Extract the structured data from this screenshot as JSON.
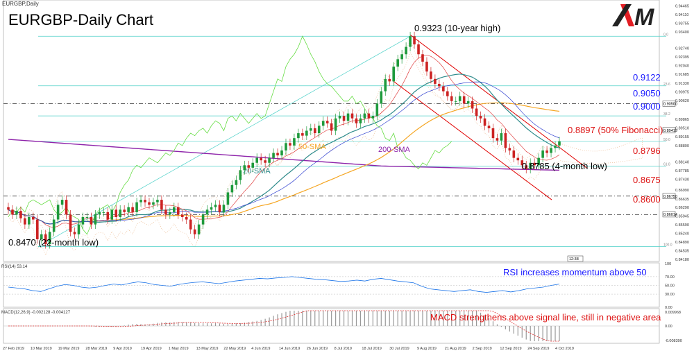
{
  "symbol_label": "EURGBP,Daily",
  "title": "EURGBP-Daily Chart",
  "logo_text": "XM",
  "colors": {
    "sma20": "#2e8b8b",
    "sma50": "#f5a623",
    "sma200": "#8e24aa",
    "bull": "#1e9a3c",
    "bear": "#cc2222",
    "channel": "#e00000",
    "fib": "#4dd0c8",
    "chikou": "#66dd44",
    "tenkan": "#e04040",
    "kijun": "#3040d0",
    "annotation_blue": "#1a1aff",
    "annotation_red": "#dd1111"
  },
  "chart_data": {
    "type": "candlestick",
    "instrument": "EURGBP",
    "timeframe": "Daily",
    "xlabels": [
      "27 Feb 2019",
      "10 Mar 2019",
      "19 Mar 2019",
      "28 Mar 2019",
      "9 Apr 2019",
      "19 Apr 2019",
      "1 May 2019",
      "13 May 2019",
      "22 May 2019",
      "4 Jun 2019",
      "14 Jun 2019",
      "26 Jun 2019",
      "8 Jul 2019",
      "18 Jul 2019",
      "30 Jul 2019",
      "9 Aug 2019",
      "21 Aug 2019",
      "2 Sep 2019",
      "12 Sep 2019",
      "24 Sep 2019",
      "4 Oct 2019"
    ],
    "ylim": [
      0.841,
      0.947
    ],
    "price_axis_labels": [
      "0.94465",
      "0.94110",
      "0.93755",
      "0.93400",
      "0.92740",
      "0.92395",
      "0.92040",
      "0.91685",
      "0.91330",
      "0.90975",
      "0.90620",
      "0.89865",
      "0.89510",
      "0.89155",
      "0.88800",
      "0.88140",
      "0.87785",
      "0.87430",
      "0.86990",
      "0.86635",
      "0.86290",
      "0.85945",
      "0.85590",
      "0.85240",
      "0.84890",
      "0.84535",
      "0.84180"
    ],
    "price_axis_flags": [
      "0.90500",
      "0.89419",
      "0.86750",
      "0.86014"
    ],
    "closes": [
      0.862,
      0.86,
      0.8615,
      0.8585,
      0.856,
      0.859,
      0.858,
      0.85,
      0.852,
      0.848,
      0.853,
      0.858,
      0.864,
      0.866,
      0.86,
      0.853,
      0.852,
      0.856,
      0.859,
      0.859,
      0.856,
      0.86,
      0.861,
      0.861,
      0.858,
      0.862,
      0.859,
      0.862,
      0.861,
      0.863,
      0.861,
      0.865,
      0.866,
      0.865,
      0.864,
      0.865,
      0.866,
      0.862,
      0.86,
      0.861,
      0.863,
      0.86,
      0.859,
      0.858,
      0.854,
      0.852,
      0.856,
      0.86,
      0.862,
      0.863,
      0.864,
      0.861,
      0.864,
      0.869,
      0.872,
      0.874,
      0.878,
      0.88,
      0.879,
      0.881,
      0.883,
      0.882,
      0.881,
      0.883,
      0.885,
      0.884,
      0.886,
      0.889,
      0.888,
      0.891,
      0.893,
      0.892,
      0.894,
      0.895,
      0.893,
      0.896,
      0.898,
      0.897,
      0.894,
      0.899,
      0.9,
      0.898,
      0.901,
      0.899,
      0.897,
      0.899,
      0.901,
      0.899,
      0.9,
      0.905,
      0.91,
      0.915,
      0.914,
      0.92,
      0.923,
      0.925,
      0.928,
      0.9323,
      0.929,
      0.925,
      0.922,
      0.918,
      0.915,
      0.913,
      0.912,
      0.91,
      0.908,
      0.906,
      0.906,
      0.908,
      0.905,
      0.906,
      0.903,
      0.9,
      0.899,
      0.896,
      0.895,
      0.891,
      0.89,
      0.893,
      0.887,
      0.886,
      0.883,
      0.882,
      0.88,
      0.8785,
      0.881,
      0.88,
      0.883,
      0.886,
      0.885,
      0.887,
      0.888,
      0.8897
    ],
    "sma_20_last": 0.885,
    "sma_50_last": 0.9,
    "sma_200_last": 0.8815,
    "fibonacci_levels": {
      "0.0": 0.9323,
      "23.6": 0.9122,
      "38.2": 0.9,
      "50.0": 0.8897,
      "61.8": 0.8796,
      "100.0": 0.847
    },
    "horizontal_levels": [
      0.905,
      0.8675,
      0.86
    ],
    "sma_labels": [
      "20-SMA",
      "50-SMA",
      "200-SMA"
    ],
    "fib_small_labels": [
      "0.0",
      "23.6",
      "38.2",
      "50.0",
      "61.8",
      "100.0"
    ],
    "annotations": [
      {
        "text": "0.9323 (10-year high)",
        "value": 0.9323
      },
      {
        "text": "0.9122",
        "value": 0.9122
      },
      {
        "text": "0.9050",
        "value": 0.905
      },
      {
        "text": "0.9000",
        "value": 0.9
      },
      {
        "text": "0.8897 (50% Fibonacci)",
        "value": 0.8897
      },
      {
        "text": "0.8796",
        "value": 0.8796
      },
      {
        "text": "0.8785 (4-month low)",
        "value": 0.8785
      },
      {
        "text": "0.8675",
        "value": 0.8675
      },
      {
        "text": "0.8600",
        "value": 0.86
      },
      {
        "text": "0.8470 (22-month low)",
        "value": 0.847
      }
    ],
    "rsi": {
      "label": "RSI(14) 53.14",
      "value": 53.14,
      "axis_labels": [
        "100",
        "70.00",
        "50.00",
        "30.00",
        "0.00"
      ],
      "annotation": "RSI increases momentum above 50",
      "values": [
        46,
        44,
        42,
        38,
        36,
        42,
        48,
        52,
        50,
        46,
        44,
        46,
        50,
        53,
        51,
        55,
        58,
        56,
        52,
        50,
        48,
        52,
        55,
        57,
        58,
        56,
        54,
        57,
        60,
        62,
        64,
        66,
        65,
        67,
        68,
        70,
        68,
        66,
        64,
        63,
        61,
        59,
        60,
        62,
        60,
        64,
        66,
        63,
        60,
        58,
        56,
        48,
        42,
        40,
        38,
        36,
        38,
        40,
        36,
        34,
        36,
        38,
        35,
        38,
        42,
        44,
        46,
        50,
        53
      ]
    },
    "macd": {
      "label": "MACD(12,26,9) -0.002128 -0.004127",
      "main": -0.002128,
      "signal": -0.004127,
      "axis_labels": [
        "0.009968",
        "0.00",
        "-0.008390"
      ],
      "annotation": "MACD strengthens above signal line, still in negative area"
    },
    "time_marker": "12:38"
  }
}
